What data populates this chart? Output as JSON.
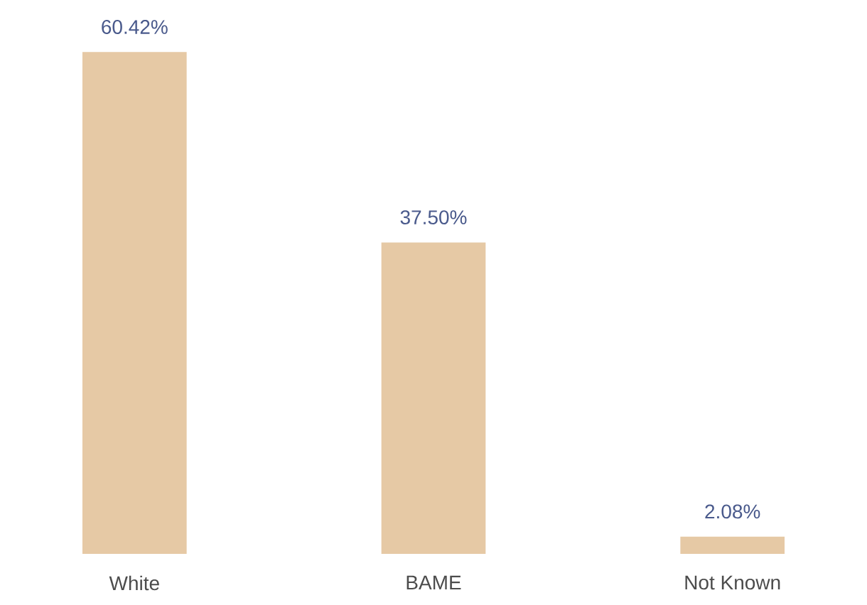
{
  "chart_data": {
    "type": "bar",
    "categories": [
      "White",
      "BAME",
      "Not Known"
    ],
    "values": [
      60.42,
      37.5,
      2.08
    ],
    "value_labels": [
      "60.42%",
      "37.50%",
      "2.08%"
    ],
    "color": "#e6c9a5"
  }
}
